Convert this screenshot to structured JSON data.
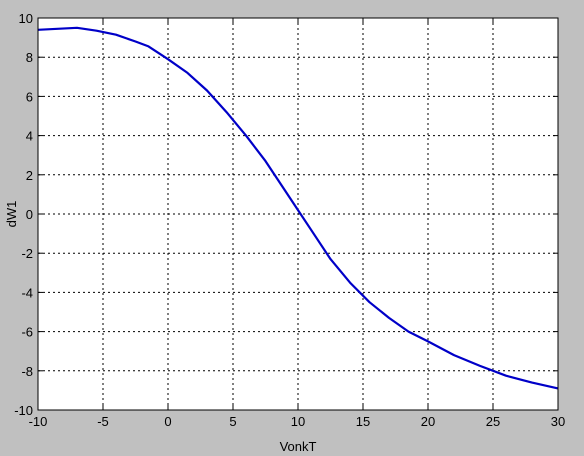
{
  "chart_data": {
    "type": "line",
    "title": "",
    "xlabel": "VonkT",
    "ylabel": "dW1",
    "xlim": [
      -10,
      30
    ],
    "ylim": [
      -10,
      10
    ],
    "xticks": [
      -10,
      -5,
      0,
      5,
      10,
      15,
      20,
      25,
      30
    ],
    "yticks": [
      -10,
      -8,
      -6,
      -4,
      -2,
      0,
      2,
      4,
      6,
      8,
      10
    ],
    "grid": true,
    "grid_style": "dotted",
    "colors": {
      "background": "#c0c0c0",
      "plot_area": "#ffffff",
      "line": "#0000c8",
      "grid": "#000000"
    },
    "series": [
      {
        "x": [
          -10,
          -8.5,
          -7,
          -5.5,
          -4,
          -2.5,
          -1.5,
          0,
          1.5,
          3,
          4.5,
          6,
          7.5,
          9,
          10,
          11,
          12.5,
          14,
          15.5,
          17,
          18.5,
          20,
          22,
          24,
          26,
          28,
          30
        ],
        "y": [
          9.4,
          9.45,
          9.5,
          9.35,
          9.15,
          8.8,
          8.55,
          7.9,
          7.2,
          6.3,
          5.2,
          4.0,
          2.7,
          1.2,
          0.2,
          -0.8,
          -2.3,
          -3.5,
          -4.5,
          -5.3,
          -6.0,
          -6.5,
          -7.2,
          -7.75,
          -8.25,
          -8.6,
          -8.9
        ]
      }
    ]
  }
}
